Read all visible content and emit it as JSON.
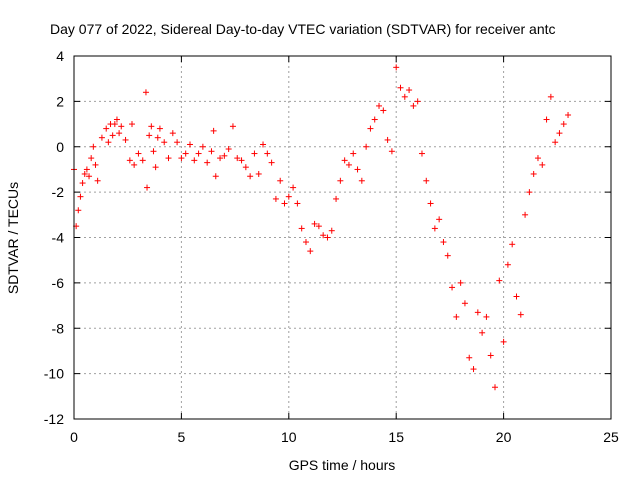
{
  "chart_data": {
    "type": "scatter",
    "title": "Day 077 of 2022, Sidereal Day-to-day VTEC variation (SDTVAR) for receiver antc",
    "xlabel": "GPS time / hours",
    "ylabel": "SDTVAR / TECUs",
    "xlim": [
      0,
      25
    ],
    "ylim": [
      -12,
      4
    ],
    "xticks": [
      0,
      5,
      10,
      15,
      20,
      25
    ],
    "yticks": [
      -12,
      -10,
      -8,
      -6,
      -4,
      -2,
      0,
      2,
      4
    ],
    "xtick_labels": [
      "0",
      "5",
      "10",
      "15",
      "20",
      "25"
    ],
    "ytick_labels": [
      "-12",
      "-10",
      "-8",
      "-6",
      "-4",
      "-2",
      "0",
      "2",
      "4"
    ],
    "grid": true,
    "marker": "+",
    "colors": {
      "series": "#ff0000",
      "grid": "#a0a0a0",
      "axis": "#000000"
    },
    "series": [
      {
        "name": "SDTVAR",
        "x": [
          0.0,
          0.1,
          0.2,
          0.3,
          0.4,
          0.5,
          0.6,
          0.7,
          0.8,
          0.9,
          1.0,
          1.1,
          1.3,
          1.5,
          1.6,
          1.7,
          1.8,
          1.9,
          2.0,
          2.1,
          2.2,
          2.4,
          2.6,
          2.7,
          2.8,
          3.0,
          3.2,
          3.35,
          3.4,
          3.5,
          3.6,
          3.7,
          3.8,
          3.9,
          4.0,
          4.2,
          4.4,
          4.6,
          4.8,
          5.0,
          5.2,
          5.4,
          5.6,
          5.8,
          6.0,
          6.2,
          6.4,
          6.5,
          6.6,
          6.8,
          7.0,
          7.2,
          7.4,
          7.6,
          7.8,
          8.0,
          8.2,
          8.4,
          8.6,
          8.8,
          9.0,
          9.2,
          9.4,
          9.6,
          9.8,
          10.0,
          10.2,
          10.4,
          10.6,
          10.8,
          11.0,
          11.2,
          11.4,
          11.6,
          11.8,
          12.0,
          12.2,
          12.4,
          12.6,
          12.8,
          13.0,
          13.2,
          13.4,
          13.6,
          13.8,
          14.0,
          14.2,
          14.4,
          14.6,
          14.8,
          15.0,
          15.2,
          15.4,
          15.6,
          15.8,
          16.0,
          16.2,
          16.4,
          16.6,
          16.8,
          17.0,
          17.2,
          17.4,
          17.6,
          17.8,
          18.0,
          18.2,
          18.4,
          18.6,
          18.8,
          19.0,
          19.2,
          19.4,
          19.6,
          19.8,
          20.0,
          20.2,
          20.4,
          20.6,
          20.8,
          21.0,
          21.2,
          21.4,
          21.6,
          21.8,
          22.0,
          22.2,
          22.4,
          22.6,
          22.8,
          23.0
        ],
        "y": [
          -1.0,
          -3.5,
          -2.8,
          -2.2,
          -1.6,
          -1.2,
          -1.0,
          -1.3,
          -0.5,
          0.0,
          -0.8,
          -1.5,
          0.4,
          0.8,
          0.2,
          1.0,
          0.5,
          1.0,
          1.2,
          0.6,
          0.9,
          0.3,
          -0.6,
          1.0,
          -0.8,
          -0.3,
          -0.6,
          2.4,
          -1.8,
          0.5,
          0.9,
          -0.2,
          -0.9,
          0.4,
          0.8,
          0.2,
          -0.5,
          0.6,
          0.2,
          -0.5,
          -0.3,
          0.1,
          -0.6,
          -0.3,
          0.0,
          -0.7,
          -0.2,
          0.7,
          -1.3,
          -0.5,
          -0.4,
          -0.1,
          0.9,
          -0.5,
          -0.6,
          -0.9,
          -1.3,
          -0.3,
          -1.2,
          0.1,
          -0.3,
          -0.7,
          -2.3,
          -1.5,
          -2.5,
          -2.2,
          -1.8,
          -2.5,
          -3.6,
          -4.2,
          -4.6,
          -3.4,
          -3.5,
          -3.9,
          -4.0,
          -3.7,
          -2.3,
          -1.5,
          -0.6,
          -0.8,
          -0.3,
          -1.0,
          -1.5,
          0.0,
          0.8,
          1.2,
          1.8,
          1.6,
          0.3,
          -0.2,
          3.5,
          2.6,
          2.2,
          2.5,
          1.8,
          2.0,
          -0.3,
          -1.5,
          -2.5,
          -3.6,
          -3.2,
          -4.2,
          -4.8,
          -6.2,
          -7.5,
          -6.0,
          -6.9,
          -9.3,
          -9.8,
          -7.3,
          -8.2,
          -7.5,
          -9.2,
          -10.6,
          -5.9,
          -8.6,
          -5.2,
          -4.3,
          -6.6,
          -7.4,
          -3.0,
          -2.0,
          -1.2,
          -0.5,
          -0.8,
          1.2,
          2.2,
          0.2,
          0.6,
          1.0,
          1.4
        ]
      }
    ]
  }
}
